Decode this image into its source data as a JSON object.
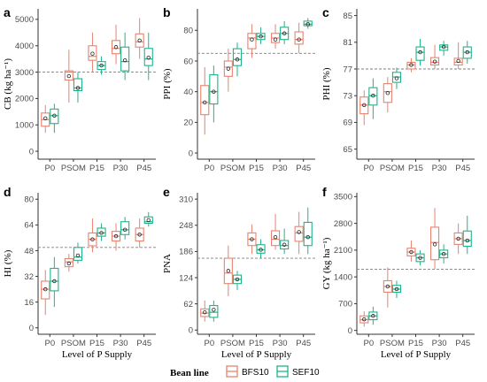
{
  "colors": {
    "BFS10": "#e8836f",
    "SEF10": "#1fb38a",
    "axis": "#333333",
    "ref": "#7f7f7f"
  },
  "legend": {
    "title": "Bean line",
    "items": [
      {
        "name": "BFS10",
        "color": "#e8836f"
      },
      {
        "name": "SEF10",
        "color": "#1fb38a"
      }
    ]
  },
  "chart_data": [
    {
      "panel": "a",
      "type": "boxplot",
      "ylabel": "CB (kg ha⁻¹)",
      "xlabel": "",
      "categories": [
        "P0",
        "PSOM",
        "P15",
        "P30",
        "P45"
      ],
      "ylim": [
        -300,
        5400
      ],
      "yticks": [
        0,
        1000,
        2000,
        3000,
        4000,
        5000
      ],
      "reference_line": 3000,
      "series": [
        {
          "name": "BFS10",
          "boxes": [
            {
              "min": 700,
              "q1": 950,
              "median": 1200,
              "q3": 1450,
              "max": 1750,
              "mean": 1250
            },
            {
              "min": 1850,
              "q1": 2700,
              "median": 3000,
              "q3": 3050,
              "max": 3850,
              "mean": 2850
            },
            {
              "min": 3000,
              "q1": 3450,
              "median": 3600,
              "q3": 4000,
              "max": 4500,
              "mean": 3700
            },
            {
              "min": 3300,
              "q1": 3700,
              "median": 3900,
              "q3": 4200,
              "max": 4800,
              "mean": 3950
            },
            {
              "min": 3500,
              "q1": 3950,
              "median": 4150,
              "q3": 4450,
              "max": 5050,
              "mean": 4200
            }
          ]
        },
        {
          "name": "SEF10",
          "boxes": [
            {
              "min": 700,
              "q1": 1050,
              "median": 1350,
              "q3": 1600,
              "max": 1800,
              "mean": 1350
            },
            {
              "min": 1850,
              "q1": 2300,
              "median": 2400,
              "q3": 2750,
              "max": 3000,
              "mean": 2400
            },
            {
              "min": 2900,
              "q1": 3100,
              "median": 3250,
              "q3": 3400,
              "max": 3600,
              "mean": 3250
            },
            {
              "min": 2700,
              "q1": 3050,
              "median": 3400,
              "q3": 3950,
              "max": 4500,
              "mean": 3450
            },
            {
              "min": 2700,
              "q1": 3250,
              "median": 3500,
              "q3": 3900,
              "max": 4500,
              "mean": 3550
            }
          ]
        }
      ]
    },
    {
      "panel": "b",
      "type": "boxplot",
      "ylabel": "PPI (%)",
      "xlabel": "",
      "categories": [
        "P0",
        "PSOM",
        "P15",
        "P30",
        "P45"
      ],
      "ylim": [
        -4,
        94
      ],
      "yticks": [
        0,
        20,
        40,
        60,
        80
      ],
      "reference_line": 65,
      "series": [
        {
          "name": "BFS10",
          "boxes": [
            {
              "min": 12,
              "q1": 25,
              "median": 33,
              "q3": 44,
              "max": 56,
              "mean": 33
            },
            {
              "min": 40,
              "q1": 50,
              "median": 56,
              "q3": 60,
              "max": 68,
              "mean": 55
            },
            {
              "min": 62,
              "q1": 68,
              "median": 75,
              "q3": 78,
              "max": 84,
              "mean": 74
            },
            {
              "min": 68,
              "q1": 72,
              "median": 75,
              "q3": 78,
              "max": 84,
              "mean": 74
            },
            {
              "min": 65,
              "q1": 71,
              "median": 74,
              "q3": 79,
              "max": 85,
              "mean": 74
            }
          ]
        },
        {
          "name": "SEF10",
          "boxes": [
            {
              "min": 20,
              "q1": 32,
              "median": 40,
              "q3": 51,
              "max": 57,
              "mean": 40
            },
            {
              "min": 50,
              "q1": 57,
              "median": 61,
              "q3": 68,
              "max": 72,
              "mean": 61
            },
            {
              "min": 71,
              "q1": 74,
              "median": 76,
              "q3": 78,
              "max": 82,
              "mean": 76
            },
            {
              "min": 71,
              "q1": 74,
              "median": 78,
              "q3": 82,
              "max": 86,
              "mean": 78
            },
            {
              "min": 81,
              "q1": 83,
              "median": 84,
              "q3": 86,
              "max": 88,
              "mean": 84
            }
          ]
        }
      ]
    },
    {
      "panel": "c",
      "type": "boxplot",
      "ylabel": "PHI (%)",
      "xlabel": "",
      "categories": [
        "P0",
        "PSOM",
        "P15",
        "P30",
        "P45"
      ],
      "ylim": [
        63.5,
        86
      ],
      "yticks": [
        65,
        69,
        73,
        77,
        81,
        85
      ],
      "reference_line": 77,
      "series": [
        {
          "name": "BFS10",
          "boxes": [
            {
              "min": 68.6,
              "q1": 70.3,
              "median": 71.6,
              "q3": 72.8,
              "max": 73.8,
              "mean": 71.6
            },
            {
              "min": 70.5,
              "q1": 72.0,
              "median": 73.6,
              "q3": 74.8,
              "max": 75.8,
              "mean": 73.4
            },
            {
              "min": 76.5,
              "q1": 77.0,
              "median": 77.6,
              "q3": 78.0,
              "max": 78.6,
              "mean": 77.6
            },
            {
              "min": 77.0,
              "q1": 77.6,
              "median": 78.0,
              "q3": 78.7,
              "max": 80.6,
              "mean": 78.1
            },
            {
              "min": 77.0,
              "q1": 77.6,
              "median": 78.0,
              "q3": 78.6,
              "max": 81.0,
              "mean": 78.2
            }
          ]
        },
        {
          "name": "SEF10",
          "boxes": [
            {
              "min": 69.5,
              "q1": 71.6,
              "median": 73.0,
              "q3": 74.2,
              "max": 75.6,
              "mean": 73.0
            },
            {
              "min": 74.0,
              "q1": 75.0,
              "median": 75.8,
              "q3": 76.5,
              "max": 77.2,
              "mean": 75.6
            },
            {
              "min": 77.5,
              "q1": 78.3,
              "median": 79.5,
              "q3": 80.3,
              "max": 81.5,
              "mean": 79.5
            },
            {
              "min": 79.0,
              "q1": 79.8,
              "median": 80.3,
              "q3": 80.6,
              "max": 81.2,
              "mean": 80.3
            },
            {
              "min": 77.8,
              "q1": 78.6,
              "median": 79.5,
              "q3": 80.3,
              "max": 81.2,
              "mean": 79.5
            }
          ]
        }
      ]
    },
    {
      "panel": "d",
      "type": "boxplot",
      "ylabel": "HI (%)",
      "xlabel": "Level of P Supply",
      "categories": [
        "P0",
        "PSOM",
        "P15",
        "P30",
        "P45"
      ],
      "ylim": [
        -4,
        84
      ],
      "yticks": [
        0,
        16,
        32,
        48,
        64,
        80
      ],
      "reference_line": 50,
      "series": [
        {
          "name": "BFS10",
          "boxes": [
            {
              "min": 8,
              "q1": 18,
              "median": 24,
              "q3": 29,
              "max": 36,
              "mean": 24
            },
            {
              "min": 35,
              "q1": 38,
              "median": 41,
              "q3": 43,
              "max": 46,
              "mean": 40
            },
            {
              "min": 47,
              "q1": 51,
              "median": 55,
              "q3": 59,
              "max": 68,
              "mean": 55
            },
            {
              "min": 48,
              "q1": 54,
              "median": 57,
              "q3": 60,
              "max": 65,
              "mean": 57
            },
            {
              "min": 50,
              "q1": 54,
              "median": 58,
              "q3": 62,
              "max": 68,
              "mean": 58
            }
          ]
        },
        {
          "name": "SEF10",
          "boxes": [
            {
              "min": 13,
              "q1": 23,
              "median": 29,
              "q3": 37,
              "max": 44,
              "mean": 29
            },
            {
              "min": 40,
              "q1": 42,
              "median": 44,
              "q3": 50,
              "max": 53,
              "mean": 45
            },
            {
              "min": 54,
              "q1": 57,
              "median": 59,
              "q3": 62,
              "max": 65,
              "mean": 59
            },
            {
              "min": 55,
              "q1": 58,
              "median": 61,
              "q3": 66,
              "max": 69,
              "mean": 61
            },
            {
              "min": 63,
              "q1": 65,
              "median": 66,
              "q3": 69,
              "max": 72,
              "mean": 67
            }
          ]
        }
      ]
    },
    {
      "panel": "e",
      "type": "boxplot",
      "ylabel": "PNA",
      "xlabel": "Level of P Supply",
      "categories": [
        "P0",
        "PSOM",
        "P15",
        "P30",
        "P45"
      ],
      "ylim": [
        -10,
        325
      ],
      "yticks": [
        0,
        62,
        124,
        186,
        248,
        310
      ],
      "reference_line": 170,
      "series": [
        {
          "name": "BFS10",
          "boxes": [
            {
              "min": 20,
              "q1": 32,
              "median": 40,
              "q3": 50,
              "max": 70,
              "mean": 42
            },
            {
              "min": 80,
              "q1": 110,
              "median": 135,
              "q3": 170,
              "max": 200,
              "mean": 140
            },
            {
              "min": 180,
              "q1": 200,
              "median": 215,
              "q3": 230,
              "max": 250,
              "mean": 215
            },
            {
              "min": 190,
              "q1": 200,
              "median": 215,
              "q3": 235,
              "max": 275,
              "mean": 220
            },
            {
              "min": 180,
              "q1": 210,
              "median": 230,
              "q3": 245,
              "max": 280,
              "mean": 232
            }
          ]
        },
        {
          "name": "SEF10",
          "boxes": [
            {
              "min": 20,
              "q1": 30,
              "median": 42,
              "q3": 58,
              "max": 70,
              "mean": 48
            },
            {
              "min": 95,
              "q1": 110,
              "median": 120,
              "q3": 130,
              "max": 140,
              "mean": 120
            },
            {
              "min": 170,
              "q1": 182,
              "median": 190,
              "q3": 202,
              "max": 215,
              "mean": 190
            },
            {
              "min": 180,
              "q1": 192,
              "median": 200,
              "q3": 212,
              "max": 240,
              "mean": 202
            },
            {
              "min": 180,
              "q1": 200,
              "median": 220,
              "q3": 255,
              "max": 290,
              "mean": 220
            }
          ]
        }
      ]
    },
    {
      "panel": "f",
      "type": "boxplot",
      "ylabel": "GY (kg ha⁻¹)",
      "xlabel": "Level of P Supply",
      "categories": [
        "P0",
        "PSOM",
        "P15",
        "P30",
        "P45"
      ],
      "ylim": [
        -100,
        3600
      ],
      "yticks": [
        0,
        700,
        1400,
        2100,
        2800,
        3500
      ],
      "reference_line": 1600,
      "series": [
        {
          "name": "BFS10",
          "boxes": [
            {
              "min": 100,
              "q1": 200,
              "median": 280,
              "q3": 380,
              "max": 500,
              "mean": 290
            },
            {
              "min": 600,
              "q1": 1000,
              "median": 1150,
              "q3": 1300,
              "max": 1650,
              "mean": 1150
            },
            {
              "min": 1800,
              "q1": 1950,
              "median": 2050,
              "q3": 2150,
              "max": 2350,
              "mean": 2050
            },
            {
              "min": 1600,
              "q1": 1850,
              "median": 2300,
              "q3": 2700,
              "max": 3200,
              "mean": 2250
            },
            {
              "min": 2000,
              "q1": 2250,
              "median": 2400,
              "q3": 2550,
              "max": 2800,
              "mean": 2400
            }
          ]
        },
        {
          "name": "SEF10",
          "boxes": [
            {
              "min": 150,
              "q1": 280,
              "median": 380,
              "q3": 480,
              "max": 620,
              "mean": 380
            },
            {
              "min": 850,
              "q1": 1000,
              "median": 1080,
              "q3": 1180,
              "max": 1300,
              "mean": 1080
            },
            {
              "min": 1700,
              "q1": 1800,
              "median": 1900,
              "q3": 2000,
              "max": 2100,
              "mean": 1900
            },
            {
              "min": 1750,
              "q1": 1900,
              "median": 2000,
              "q3": 2100,
              "max": 2250,
              "mean": 2000
            },
            {
              "min": 2000,
              "q1": 2200,
              "median": 2350,
              "q3": 2600,
              "max": 3000,
              "mean": 2350
            }
          ]
        }
      ]
    }
  ]
}
